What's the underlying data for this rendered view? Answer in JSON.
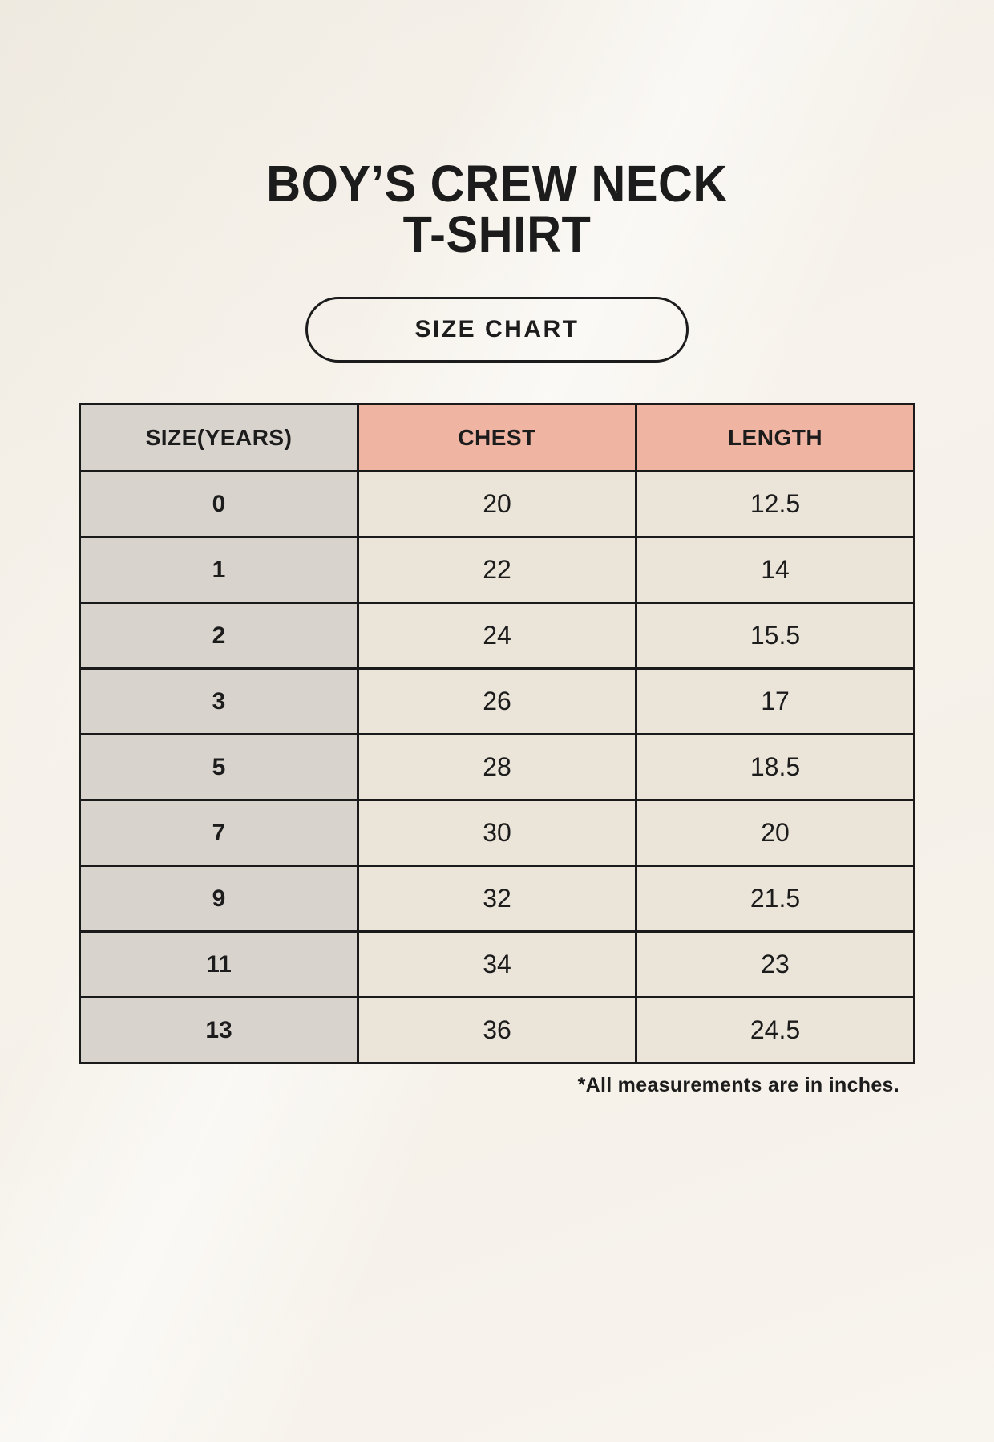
{
  "header": {
    "title_line1": "BOY’S CREW NECK",
    "title_line2": "T-SHIRT",
    "badge_label": "SIZE CHART"
  },
  "chart_data": {
    "type": "table",
    "title": "BOY’S CREW NECK T-SHIRT — SIZE CHART",
    "columns": [
      "SIZE(YEARS)",
      "CHEST",
      "LENGTH"
    ],
    "rows": [
      [
        "0",
        "20",
        "12.5"
      ],
      [
        "1",
        "22",
        "14"
      ],
      [
        "2",
        "24",
        "15.5"
      ],
      [
        "3",
        "26",
        "17"
      ],
      [
        "5",
        "28",
        "18.5"
      ],
      [
        "7",
        "30",
        "20"
      ],
      [
        "9",
        "32",
        "21.5"
      ],
      [
        "11",
        "34",
        "23"
      ],
      [
        "13",
        "36",
        "24.5"
      ]
    ],
    "footnote": "*All measurements are in inches.",
    "units": "inches"
  },
  "colors": {
    "background": "#f6f2ea",
    "header_accent": "#f0b5a2",
    "label_column_bg": "#d9d3cd",
    "cell_bg": "#eae4d9",
    "border": "#1a1a1a",
    "text": "#1c1c1c"
  }
}
